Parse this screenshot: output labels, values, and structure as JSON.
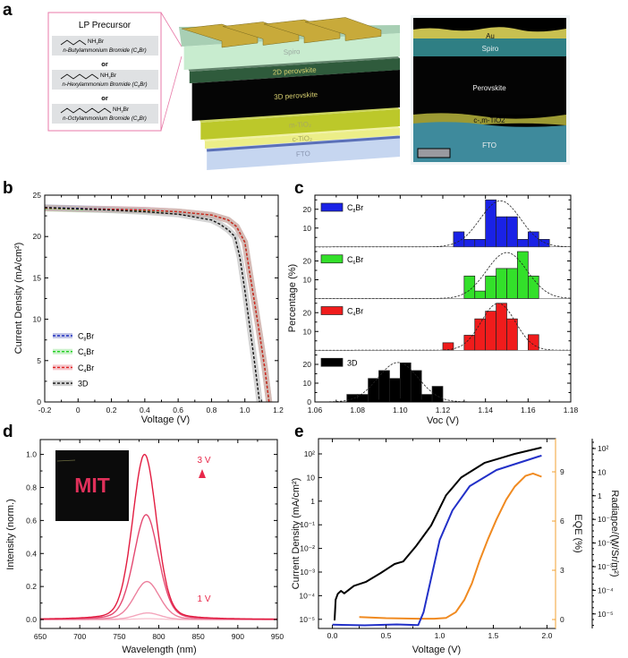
{
  "panel_labels": {
    "a": "a",
    "b": "b",
    "c": "c",
    "d": "d",
    "e": "e"
  },
  "panel_a": {
    "precursor_box": {
      "title": "LP Precursor",
      "or_label": "or",
      "items": [
        {
          "chain_length": 4,
          "group_main": "NH",
          "group_sub": "3",
          "group_end": "Br",
          "name_pre": "n-Butylammonium Bromide (C",
          "name_sub": "4",
          "name_post": "Br)"
        },
        {
          "chain_length": 6,
          "group_main": "NH",
          "group_sub": "3",
          "group_end": "Br",
          "name_pre": "n-Hexylammonium Bromide (C",
          "name_sub": "6",
          "name_post": "Br)"
        },
        {
          "chain_length": 8,
          "group_main": "NH",
          "group_sub": "3",
          "group_end": "Br",
          "name_pre": "n-Octylammonium Bromide (C",
          "name_sub": "8",
          "name_post": "Br)"
        }
      ],
      "border_color": "#e87aa8"
    },
    "device_layers": [
      {
        "label": "Spiro",
        "color": "#c8eccf"
      },
      {
        "label": "2D perovskite",
        "color": "#2f5b3c"
      },
      {
        "label": "3D perovskite",
        "color": "#050505"
      },
      {
        "label": "m-TiO₂",
        "color": "#bcc82a"
      },
      {
        "label": "c-TiO₂",
        "color": "#ecee88"
      },
      {
        "label": "FTO",
        "color": "#c6d6f0"
      }
    ],
    "electrode_color": "#c8aa3a",
    "sem_labels": {
      "au": "Au",
      "spiro": "Spiro",
      "perovskite": "Perovskite",
      "tio2": "c-,m-TiO2",
      "fto": "FTO"
    }
  },
  "chart_data": [
    {
      "panel": "b",
      "type": "line",
      "xlabel": "Voltage (V)",
      "ylabel": "Current Density (mA/cm²)",
      "xlim": [
        -0.2,
        1.2
      ],
      "ylim": [
        0,
        25
      ],
      "xticks": [
        -0.2,
        0,
        0.2,
        0.4,
        0.6,
        0.8,
        1.0,
        1.2
      ],
      "xtick_labels": [
        "-0.2",
        "0",
        "0.2",
        "0.4",
        "0.6",
        "0.8",
        "1.0",
        "1.2"
      ],
      "yticks": [
        0,
        5,
        10,
        15,
        20,
        25
      ],
      "ytick_labels": [
        "0",
        "5",
        "10",
        "15",
        "20",
        "25"
      ],
      "legend_position": "bottom-left",
      "series": [
        {
          "label": {
            "pre": "C",
            "sub": "8",
            "post": "Br"
          },
          "color": "#2030c0",
          "halo": "#9aa0d8",
          "x": [
            -0.2,
            0,
            0.2,
            0.4,
            0.6,
            0.8,
            0.9,
            0.95,
            1.0,
            1.03,
            1.06,
            1.09,
            1.12,
            1.145
          ],
          "y": [
            23.5,
            23.4,
            23.3,
            23.2,
            23.0,
            22.6,
            22.0,
            21.2,
            19.3,
            15.5,
            11.8,
            8.0,
            4.0,
            0
          ]
        },
        {
          "label": {
            "pre": "C",
            "sub": "6",
            "post": "Br"
          },
          "color": "#20d020",
          "halo": "#a8e8a8",
          "x": [
            -0.2,
            0,
            0.2,
            0.4,
            0.6,
            0.8,
            0.9,
            0.95,
            1.0,
            1.03,
            1.06,
            1.09,
            1.12,
            1.145
          ],
          "y": [
            23.4,
            23.3,
            23.25,
            23.15,
            23.0,
            22.6,
            22.0,
            21.2,
            19.3,
            15.5,
            11.8,
            8.0,
            4.0,
            0
          ]
        },
        {
          "label": {
            "pre": "C",
            "sub": "4",
            "post": "Br"
          },
          "color": "#e02020",
          "halo": "#f0a0a8",
          "x": [
            -0.2,
            0,
            0.2,
            0.4,
            0.6,
            0.8,
            0.9,
            0.95,
            1.0,
            1.03,
            1.06,
            1.09,
            1.12,
            1.145
          ],
          "y": [
            23.45,
            23.35,
            23.3,
            23.2,
            23.0,
            22.6,
            22.0,
            21.2,
            19.3,
            15.5,
            11.8,
            8.0,
            4.0,
            0
          ]
        },
        {
          "label": {
            "pre": "3D",
            "sub": "",
            "post": ""
          },
          "color": "#111111",
          "halo": "#b0b0b0",
          "x": [
            -0.2,
            0,
            0.2,
            0.4,
            0.6,
            0.8,
            0.85,
            0.9,
            0.94,
            0.97,
            1.0,
            1.03,
            1.06,
            1.088
          ],
          "y": [
            23.5,
            23.35,
            23.2,
            23.0,
            22.7,
            22.0,
            21.5,
            20.8,
            20.0,
            17.5,
            13.5,
            9.0,
            4.5,
            0
          ]
        }
      ]
    },
    {
      "panel": "c",
      "type": "bar",
      "xlabel": "Voc (V)",
      "ylabel": "Percentage (%)",
      "xlim": [
        1.06,
        1.18
      ],
      "xticks": [
        1.06,
        1.08,
        1.1,
        1.12,
        1.14,
        1.16,
        1.18
      ],
      "xtick_labels": [
        "1.06",
        "1.08",
        "1.10",
        "1.12",
        "1.14",
        "1.16",
        "1.18"
      ],
      "yticks": [
        10,
        20
      ],
      "ytick_labels": [
        "10",
        "20"
      ],
      "zero_label": "0",
      "bin_width": 0.005,
      "subplots": [
        {
          "label": {
            "pre": "C",
            "sub": "8",
            "post": "Br"
          },
          "color": "#1a22e6",
          "bin_starts": [
            1.125,
            1.13,
            1.135,
            1.14,
            1.145,
            1.15,
            1.155,
            1.16,
            1.165
          ],
          "values": [
            8,
            4,
            4,
            25,
            16,
            16,
            4,
            8,
            4
          ],
          "fit": {
            "mean": 1.147,
            "sigma": 0.0095,
            "peak": 24.5
          }
        },
        {
          "label": {
            "pre": "C",
            "sub": "6",
            "post": "Br"
          },
          "color": "#33e02a",
          "bin_starts": [
            1.13,
            1.135,
            1.14,
            1.145,
            1.15,
            1.155,
            1.16
          ],
          "values": [
            12,
            4,
            12,
            16,
            16,
            25,
            12
          ],
          "fit": {
            "mean": 1.15,
            "sigma": 0.0095,
            "peak": 24.5
          }
        },
        {
          "label": {
            "pre": "C",
            "sub": "4",
            "post": "Br"
          },
          "color": "#f01c1c",
          "bin_starts": [
            1.12,
            1.13,
            1.135,
            1.14,
            1.145,
            1.15,
            1.16
          ],
          "values": [
            4,
            8,
            16.7,
            20.8,
            25,
            16.7,
            8.3
          ],
          "fit": {
            "mean": 1.146,
            "sigma": 0.008,
            "peak": 25
          }
        },
        {
          "label": {
            "pre": "3D",
            "sub": "",
            "post": ""
          },
          "color": "#000000",
          "bin_starts": [
            1.075,
            1.08,
            1.085,
            1.09,
            1.095,
            1.1,
            1.105,
            1.11,
            1.115
          ],
          "values": [
            4,
            4,
            12.5,
            16.7,
            12.5,
            20.8,
            16.7,
            4,
            8.3
          ],
          "fit": {
            "mean": 1.099,
            "sigma": 0.0095,
            "peak": 21
          }
        }
      ]
    },
    {
      "panel": "d",
      "type": "line",
      "xlabel": "Wavelength (nm)",
      "ylabel": "Intensity (norm.)",
      "xlim": [
        650,
        950
      ],
      "ylim": [
        -0.054,
        1.09
      ],
      "xticks": [
        650,
        700,
        750,
        800,
        850,
        900,
        950
      ],
      "xtick_labels": [
        "650",
        "700",
        "750",
        "800",
        "850",
        "900",
        "950"
      ],
      "yticks": [
        0,
        0.2,
        0.4,
        0.6,
        0.8,
        1.0
      ],
      "ytick_labels": [
        "0.0",
        "0.2",
        "0.4",
        "0.6",
        "0.8",
        "1.0"
      ],
      "series": [
        {
          "peak_wavelength": 786,
          "peak_intensity": 0.005,
          "fwhm": 38,
          "color": "#f8c6d2"
        },
        {
          "peak_wavelength": 786,
          "peak_intensity": 0.04,
          "fwhm": 38,
          "color": "#f4a6bc"
        },
        {
          "peak_wavelength": 785,
          "peak_intensity": 0.23,
          "fwhm": 38,
          "color": "#ec7f9c"
        },
        {
          "peak_wavelength": 784,
          "peak_intensity": 0.635,
          "fwhm": 37,
          "color": "#e44870"
        },
        {
          "peak_wavelength": 782,
          "peak_intensity": 1.0,
          "fwhm": 36,
          "color": "#e21c40"
        }
      ],
      "annotations": {
        "high": "3 V",
        "low": "1 V",
        "color": "#e8284a"
      },
      "inset": {
        "text": "MIT",
        "text_color": "#e0305a"
      }
    },
    {
      "panel": "e",
      "type": "line",
      "xlabel": "Voltage (V)",
      "ylabel_left": "Current Density (mA/cm²)",
      "ylabel_right": "EQE (%)",
      "ylabel_far_right": "Radiance/(W/Sr/m²)",
      "xlim": [
        -0.13,
        2.08
      ],
      "xticks": [
        0,
        0.5,
        1.0,
        1.5,
        2.0
      ],
      "xtick_labels": [
        "0.0",
        "0.5",
        "1.0",
        "1.5",
        "2.0"
      ],
      "left_axis": {
        "scale": "log",
        "ticks": [
          1e-05,
          0.0001,
          0.001,
          0.01,
          0.1,
          1,
          10,
          100
        ],
        "tick_labels": [
          "10⁻⁵",
          "10⁻⁴",
          "10⁻³",
          "10⁻²",
          "10⁻¹",
          "1",
          "10",
          "10²"
        ]
      },
      "right_axis": {
        "scale": "linear",
        "ticks": [
          0,
          3,
          6,
          9
        ],
        "tick_labels": [
          "0",
          "3",
          "6",
          "9"
        ],
        "color": "#f0a030"
      },
      "far_right_axis": {
        "scale": "log",
        "ticks": [
          1e-05,
          0.0001,
          0.001,
          0.01,
          0.1,
          1,
          10,
          100
        ],
        "tick_labels": [
          "10⁻⁵",
          "10⁻⁴",
          "10⁻³",
          "10⁻²",
          "10⁻¹",
          "1",
          "10",
          "10²"
        ],
        "color": "#4a5aa8"
      },
      "series": [
        {
          "quantity": "current_density",
          "axis": "left",
          "color": "#000000",
          "x": [
            0.02,
            0.03,
            0.05,
            0.08,
            0.11,
            0.2,
            0.31,
            0.45,
            0.58,
            0.66,
            0.78,
            0.92,
            1.06,
            1.2,
            1.42,
            1.7,
            1.95
          ],
          "y": [
            9e-06,
            6.8e-05,
            0.00012,
            0.00016,
            0.000126,
            0.00026,
            0.00038,
            0.00091,
            0.0022,
            0.0028,
            0.0126,
            0.093,
            1.8,
            10,
            42,
            100,
            186
          ]
        },
        {
          "quantity": "radiance",
          "axis": "far_right",
          "color": "#2230c8",
          "x": [
            0.0,
            0.3,
            0.6,
            0.8,
            0.85,
            0.9,
            1.0,
            1.12,
            1.28,
            1.53,
            1.92,
            1.95
          ],
          "y": [
            3.5e-06,
            3.3e-06,
            3.6e-06,
            3.4e-06,
            1.2e-05,
            0.000126,
            0.0135,
            0.245,
            2.57,
            12.3,
            45.7,
            50
          ]
        },
        {
          "quantity": "eqe",
          "axis": "right",
          "color": "#f08a20",
          "x": [
            0.25,
            0.5,
            0.8,
            0.95,
            1.06,
            1.15,
            1.23,
            1.3,
            1.37,
            1.45,
            1.53,
            1.62,
            1.7,
            1.8,
            1.87,
            1.95
          ],
          "y": [
            0.15,
            0.08,
            0.05,
            0.05,
            0.1,
            0.45,
            1.2,
            2.2,
            3.55,
            4.9,
            6.1,
            7.3,
            8.1,
            8.75,
            8.9,
            8.7
          ]
        }
      ]
    }
  ]
}
